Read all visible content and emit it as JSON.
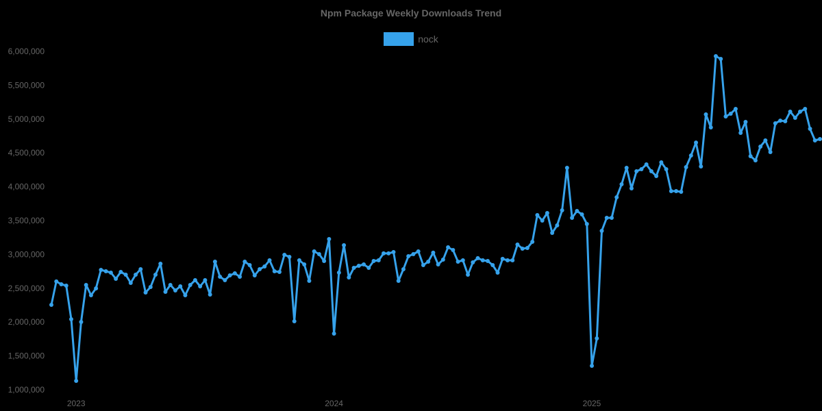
{
  "header": {
    "title": "Npm Package Weekly Downloads Trend"
  },
  "legend": {
    "items": [
      {
        "label": "nock",
        "color": "#36A2EB"
      }
    ]
  },
  "chart_data": {
    "type": "line",
    "title": "Npm Package Weekly Downloads Trend",
    "xlabel": "",
    "ylabel": "",
    "ylim": [
      1000000,
      6000000
    ],
    "grid": false,
    "legend_position": "top",
    "y_ticks": [
      "1,000,000",
      "1,500,000",
      "2,000,000",
      "2,500,000",
      "3,000,000",
      "3,500,000",
      "4,000,000",
      "4,500,000",
      "5,000,000",
      "5,500,000",
      "6,000,000"
    ],
    "x_ticks": [
      {
        "label": "2023",
        "index": 5
      },
      {
        "label": "2024",
        "index": 57
      },
      {
        "label": "2025",
        "index": 109
      }
    ],
    "series": [
      {
        "name": "nock",
        "color": "#36A2EB",
        "values": [
          2255000,
          2600000,
          2559000,
          2539000,
          2043000,
          1132000,
          2002000,
          2549000,
          2397000,
          2498000,
          2771000,
          2751000,
          2731000,
          2640000,
          2741000,
          2700000,
          2579000,
          2700000,
          2781000,
          2437000,
          2518000,
          2700000,
          2862000,
          2447000,
          2549000,
          2468000,
          2528000,
          2397000,
          2549000,
          2619000,
          2528000,
          2619000,
          2407000,
          2893000,
          2670000,
          2619000,
          2690000,
          2721000,
          2670000,
          2893000,
          2842000,
          2690000,
          2781000,
          2822000,
          2913000,
          2751000,
          2741000,
          2994000,
          2964000,
          2012000,
          2913000,
          2852000,
          2609000,
          3045000,
          3004000,
          2903000,
          3227000,
          1830000,
          2731000,
          3136000,
          2660000,
          2802000,
          2832000,
          2852000,
          2802000,
          2903000,
          2913000,
          3015000,
          3015000,
          3035000,
          2609000,
          2781000,
          2974000,
          3004000,
          3045000,
          2842000,
          2893000,
          3025000,
          2852000,
          2923000,
          3105000,
          3065000,
          2893000,
          2913000,
          2700000,
          2883000,
          2944000,
          2913000,
          2903000,
          2842000,
          2731000,
          2934000,
          2913000,
          2913000,
          3146000,
          3085000,
          3095000,
          3186000,
          3581000,
          3500000,
          3611000,
          3318000,
          3429000,
          3652000,
          4279000,
          3540000,
          3642000,
          3591000,
          3449000,
          1354000,
          1759000,
          3348000,
          3540000,
          3540000,
          3844000,
          4036000,
          4279000,
          3976000,
          4229000,
          4259000,
          4330000,
          4229000,
          4158000,
          4360000,
          4259000,
          3935000,
          3935000,
          3925000,
          4289000,
          4461000,
          4653000,
          4299000,
          5069000,
          4876000,
          5929000,
          5889000,
          5038000,
          5079000,
          5150000,
          4796000,
          4957000,
          4451000,
          4390000,
          4593000,
          4684000,
          4512000,
          4937000,
          4977000,
          4967000,
          5109000,
          5018000,
          5109000,
          5150000,
          4856000,
          4684000,
          4704000
        ]
      }
    ]
  }
}
